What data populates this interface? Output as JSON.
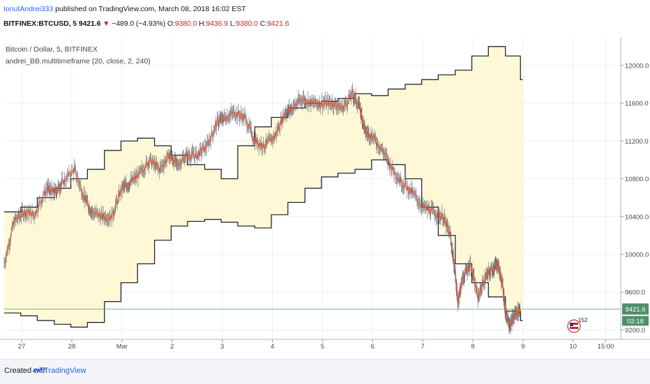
{
  "header": {
    "author": "IonutAndrei333",
    "published": "published on TradingView.com, March 08, 2018 16:02 EST",
    "symbol": "BITFINEX:BTCUSD, 5",
    "last": "9421.6",
    "change": "−489.0 (−4.93%)",
    "o_label": "O:",
    "o_value": "9380.0",
    "h_label": "H:",
    "h_value": "9436.9",
    "l_label": "L:",
    "l_value": "9380.0",
    "c_label": "C:",
    "c_value": "9421.6"
  },
  "legend": {
    "title": "Bitcoin / Dollar, 5, BITFINEX",
    "indicator": "andrei_BB.multitimeframe (20, close, 2, 240)"
  },
  "footer": {
    "created_with": "Created with",
    "brand": "TradingView"
  },
  "price_badge": {
    "value": "9421.6",
    "countdown": "02:18"
  },
  "event_badge": {
    "count": "152"
  },
  "colors": {
    "price": "#e05a3a",
    "band_fill": "#fff8d6",
    "band_line": "#131722",
    "badge": "#4f8f6b",
    "last_line": "#5b9e77"
  },
  "chart_data": {
    "type": "line",
    "title": "Bitcoin / Dollar, 5, BITFINEX",
    "ylim": [
      9100,
      12250
    ],
    "y_ticks": [
      12000,
      11600,
      11200,
      10800,
      10400,
      10000,
      9600,
      9200
    ],
    "x_ticks": [
      {
        "label": "27",
        "x": 0.35
      },
      {
        "label": "28",
        "x": 1.35
      },
      {
        "label": "Mar",
        "x": 2.35
      },
      {
        "label": "2",
        "x": 3.35
      },
      {
        "label": "3",
        "x": 4.35
      },
      {
        "label": "4",
        "x": 5.35
      },
      {
        "label": "5",
        "x": 6.35
      },
      {
        "label": "6",
        "x": 7.35
      },
      {
        "label": "7",
        "x": 8.35
      },
      {
        "label": "8",
        "x": 9.35
      },
      {
        "label": "9",
        "x": 10.35
      },
      {
        "label": "10",
        "x": 11.35
      },
      {
        "label": "15:00",
        "x": 12.0
      }
    ],
    "xlim": [
      0,
      12.3
    ],
    "series": [
      {
        "name": "BTCUSD",
        "x": [
          0.0,
          0.2,
          0.4,
          0.6,
          0.85,
          1.0,
          1.15,
          1.4,
          1.6,
          1.75,
          1.95,
          2.15,
          2.35,
          2.5,
          2.7,
          2.9,
          3.1,
          3.3,
          3.45,
          3.65,
          3.85,
          4.05,
          4.25,
          4.4,
          4.6,
          4.8,
          5.0,
          5.2,
          5.4,
          5.6,
          5.75,
          5.95,
          6.15,
          6.35,
          6.55,
          6.75,
          6.95,
          7.1,
          7.2,
          7.35,
          7.55,
          7.75,
          7.95,
          8.15,
          8.35,
          8.55,
          8.75,
          8.9,
          9.0,
          9.05,
          9.15,
          9.3,
          9.45,
          9.6,
          9.75,
          9.85,
          9.95,
          10.0,
          10.1,
          10.2,
          10.3
        ],
        "values": [
          9900,
          10350,
          10450,
          10420,
          10700,
          10650,
          10750,
          10900,
          10600,
          10450,
          10400,
          10400,
          10700,
          10750,
          10850,
          11000,
          10900,
          11050,
          10950,
          11050,
          11050,
          11150,
          11400,
          11450,
          11500,
          11450,
          11200,
          11150,
          11250,
          11500,
          11550,
          11650,
          11600,
          11600,
          11600,
          11550,
          11700,
          11550,
          11300,
          11250,
          11100,
          10900,
          10750,
          10650,
          10500,
          10450,
          10400,
          10200,
          9800,
          9500,
          9750,
          9900,
          9550,
          9750,
          9850,
          9900,
          9650,
          9400,
          9250,
          9380,
          9421.6
        ]
      },
      {
        "name": "BB upper",
        "x": [
          0.0,
          0.33,
          0.66,
          1.0,
          1.33,
          1.66,
          2.0,
          2.33,
          2.66,
          3.0,
          3.33,
          3.66,
          4.0,
          4.33,
          4.66,
          5.0,
          5.33,
          5.66,
          6.0,
          6.33,
          6.66,
          7.0,
          7.33,
          7.66,
          8.0,
          8.33,
          8.66,
          9.0,
          9.33,
          9.66,
          10.0,
          10.3
        ],
        "values": [
          10450,
          10500,
          10600,
          10700,
          10800,
          10900,
          11100,
          11200,
          11230,
          11150,
          11050,
          10950,
          10900,
          10800,
          11150,
          11350,
          11450,
          11550,
          11600,
          11620,
          11650,
          11700,
          11680,
          11750,
          11800,
          11850,
          11900,
          11950,
          12100,
          12200,
          12100,
          11850
        ]
      },
      {
        "name": "BB lower",
        "x": [
          0.0,
          0.33,
          0.66,
          1.0,
          1.33,
          1.66,
          2.0,
          2.33,
          2.66,
          3.0,
          3.33,
          3.66,
          4.0,
          4.33,
          4.66,
          5.0,
          5.33,
          5.66,
          6.0,
          6.33,
          6.66,
          7.0,
          7.33,
          7.66,
          8.0,
          8.33,
          8.66,
          9.0,
          9.33,
          9.66,
          10.0,
          10.3
        ],
        "values": [
          9380,
          9350,
          9300,
          9260,
          9230,
          9280,
          9500,
          9700,
          9900,
          10150,
          10300,
          10350,
          10370,
          10340,
          10300,
          10280,
          10420,
          10550,
          10700,
          10820,
          10860,
          10900,
          11000,
          10950,
          10800,
          10500,
          10200,
          9900,
          9700,
          9550,
          9400,
          9300
        ]
      }
    ]
  }
}
